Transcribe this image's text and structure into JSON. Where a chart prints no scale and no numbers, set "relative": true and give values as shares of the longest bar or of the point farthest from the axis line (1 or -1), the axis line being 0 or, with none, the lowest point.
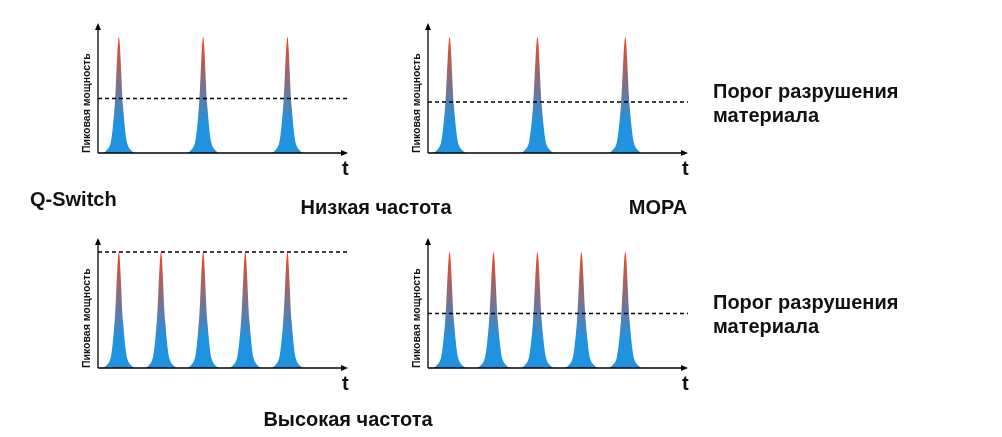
{
  "chart_data": [
    {
      "type": "area",
      "relative": true,
      "ylabel": "Пиковая мощность",
      "xlabel": "t",
      "annotations": [
        "Q-Switch",
        "Низкая частота"
      ],
      "categories": [
        null,
        null,
        null,
        null,
        null,
        null,
        null,
        null,
        null,
        null,
        null,
        null,
        null,
        null,
        null,
        null,
        null,
        null,
        null,
        null,
        null,
        null,
        null,
        null,
        null,
        null,
        null,
        null,
        null,
        null,
        null,
        null,
        null,
        null,
        null,
        null,
        null,
        null,
        null,
        null,
        null,
        null,
        null,
        null,
        null,
        null,
        null,
        null,
        null,
        null,
        null,
        null,
        null,
        null,
        null,
        null,
        null
      ],
      "series": [
        {
          "color": "#1f93e0",
          "values": [
            0,
            0.02,
            0.08,
            0.4,
            1,
            0.4,
            0.08,
            0.02,
            0,
            0,
            0,
            0,
            0,
            0,
            0,
            0,
            0,
            0,
            0,
            0,
            0,
            0.02,
            0.08,
            0.4,
            1,
            0.4,
            0.08,
            0.02,
            0,
            0,
            0,
            0,
            0,
            0,
            0,
            0,
            0,
            0,
            0,
            0,
            0,
            0.02,
            0.08,
            0.4,
            1,
            0.4,
            0.08,
            0.02,
            0,
            0,
            0,
            0,
            0,
            0,
            0,
            0,
            0
          ]
        }
      ],
      "ref_lines": [
        {
          "axis": "y",
          "value": 0.47,
          "color": "#000000",
          "line_style": "dashed"
        }
      ]
    },
    {
      "type": "area",
      "relative": true,
      "ylabel": "Пиковая мощность",
      "xlabel": "t",
      "annotations": [
        "MOPA"
      ],
      "categories": [
        null,
        null,
        null,
        null,
        null,
        null,
        null,
        null,
        null,
        null,
        null,
        null,
        null,
        null,
        null,
        null,
        null,
        null,
        null,
        null,
        null,
        null,
        null,
        null,
        null,
        null,
        null,
        null,
        null,
        null,
        null,
        null,
        null,
        null,
        null,
        null,
        null,
        null,
        null,
        null,
        null,
        null,
        null,
        null,
        null,
        null,
        null,
        null,
        null,
        null,
        null,
        null,
        null,
        null,
        null,
        null,
        null
      ],
      "series": [
        {
          "color": "#1f93e0",
          "values": [
            0,
            0.02,
            0.08,
            0.4,
            1,
            0.4,
            0.08,
            0.02,
            0,
            0,
            0,
            0,
            0,
            0,
            0,
            0,
            0,
            0,
            0,
            0,
            0,
            0.02,
            0.08,
            0.4,
            1,
            0.4,
            0.08,
            0.02,
            0,
            0,
            0,
            0,
            0,
            0,
            0,
            0,
            0,
            0,
            0,
            0,
            0,
            0.02,
            0.08,
            0.4,
            1,
            0.4,
            0.08,
            0.02,
            0,
            0,
            0,
            0,
            0,
            0,
            0,
            0,
            0
          ]
        }
      ],
      "ref_lines": [
        {
          "axis": "y",
          "value": 0.44,
          "label": "Порог разрушения материала",
          "color": "#000000",
          "line_style": "dashed"
        }
      ]
    },
    {
      "type": "area",
      "relative": true,
      "ylabel": "Пиковая мощность",
      "xlabel": "t",
      "annotations": [
        "Высокая частота"
      ],
      "categories": [
        null,
        null,
        null,
        null,
        null,
        null,
        null,
        null,
        null,
        null,
        null,
        null,
        null,
        null,
        null,
        null,
        null,
        null,
        null,
        null,
        null,
        null,
        null,
        null,
        null,
        null,
        null,
        null,
        null,
        null,
        null,
        null,
        null,
        null,
        null,
        null,
        null,
        null,
        null,
        null,
        null,
        null,
        null,
        null,
        null,
        null,
        null,
        null,
        null,
        null,
        null,
        null,
        null,
        null,
        null,
        null,
        null
      ],
      "series": [
        {
          "color": "#1f93e0",
          "values": [
            0,
            0.02,
            0.08,
            0.4,
            1,
            0.4,
            0.08,
            0.02,
            0,
            0,
            0,
            0.02,
            0.08,
            0.4,
            1,
            0.4,
            0.08,
            0.02,
            0,
            0,
            0,
            0.02,
            0.08,
            0.4,
            1,
            0.4,
            0.08,
            0.02,
            0,
            0,
            0,
            0.02,
            0.08,
            0.4,
            1,
            0.4,
            0.08,
            0.02,
            0,
            0,
            0,
            0.02,
            0.08,
            0.4,
            1,
            0.4,
            0.08,
            0.02,
            0,
            0,
            0,
            0,
            0,
            0,
            0,
            0,
            0
          ]
        }
      ],
      "ref_lines": [
        {
          "axis": "y",
          "value": 1,
          "color": "#000000",
          "line_style": "dashed"
        }
      ]
    },
    {
      "type": "area",
      "relative": true,
      "ylabel": "Пиковая мощность",
      "xlabel": "t",
      "categories": [
        null,
        null,
        null,
        null,
        null,
        null,
        null,
        null,
        null,
        null,
        null,
        null,
        null,
        null,
        null,
        null,
        null,
        null,
        null,
        null,
        null,
        null,
        null,
        null,
        null,
        null,
        null,
        null,
        null,
        null,
        null,
        null,
        null,
        null,
        null,
        null,
        null,
        null,
        null,
        null,
        null,
        null,
        null,
        null,
        null,
        null,
        null,
        null,
        null,
        null,
        null,
        null,
        null,
        null,
        null,
        null,
        null
      ],
      "series": [
        {
          "color": "#1f93e0",
          "values": [
            0,
            0.02,
            0.08,
            0.4,
            1,
            0.4,
            0.08,
            0.02,
            0,
            0,
            0,
            0.02,
            0.08,
            0.4,
            1,
            0.4,
            0.08,
            0.02,
            0,
            0,
            0,
            0.02,
            0.08,
            0.4,
            1,
            0.4,
            0.08,
            0.02,
            0,
            0,
            0,
            0.02,
            0.08,
            0.4,
            1,
            0.4,
            0.08,
            0.02,
            0,
            0,
            0,
            0.02,
            0.08,
            0.4,
            1,
            0.4,
            0.08,
            0.02,
            0,
            0,
            0,
            0,
            0,
            0,
            0,
            0,
            0
          ]
        }
      ],
      "ref_lines": [
        {
          "axis": "y",
          "value": 0.47,
          "label": "Порог разрушения материала",
          "color": "#000000",
          "line_style": "dashed"
        }
      ]
    }
  ]
}
